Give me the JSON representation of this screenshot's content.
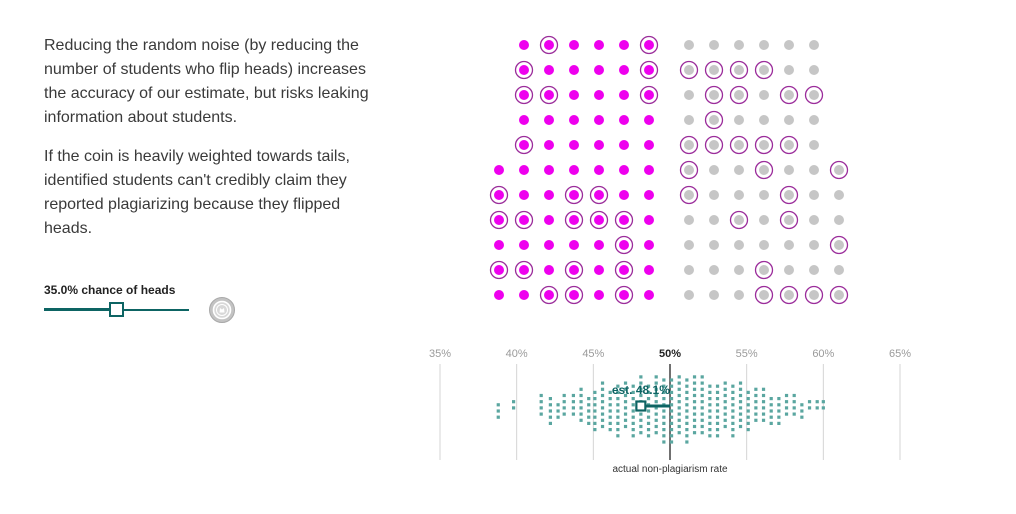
{
  "text": {
    "paragraph_1": "Reducing the random noise (by reducing the number of students who flip heads) increases the accuracy of our estimate, but risks leaking information about students.",
    "paragraph_2": "If the coin is heavily weighted towards tails, identified students can't credibly claim they reported plagiarizing because they flipped heads."
  },
  "slider": {
    "label": "35.0% chance of heads",
    "value": 0.35
  },
  "coin_button": {
    "icon": "coin-icon"
  },
  "colors": {
    "plagiarized": "#ee00ee",
    "not_plagiarized": "#c6c6c6",
    "heads_ring": "#9b2d9b",
    "estimate": "#0d6463",
    "sample": "#5aa6a0"
  },
  "student_grid": {
    "rows": [
      {
        "magenta": [
          false,
          true,
          false,
          false,
          false,
          true
        ],
        "gray": [
          false,
          false,
          false,
          false,
          false,
          false
        ]
      },
      {
        "magenta": [
          true,
          false,
          false,
          false,
          false,
          true
        ],
        "gray": [
          true,
          true,
          true,
          true,
          false,
          false
        ]
      },
      {
        "magenta": [
          true,
          true,
          false,
          false,
          false,
          true
        ],
        "gray": [
          false,
          true,
          true,
          false,
          true,
          true
        ]
      },
      {
        "magenta": [
          false,
          false,
          false,
          false,
          false,
          false
        ],
        "gray": [
          false,
          true,
          false,
          false,
          false,
          false
        ]
      },
      {
        "magenta": [
          true,
          false,
          false,
          false,
          false,
          false
        ],
        "gray": [
          true,
          true,
          true,
          true,
          true,
          false
        ]
      },
      {
        "magenta": [
          false,
          false,
          false,
          false,
          false,
          false,
          false
        ],
        "gray": [
          true,
          false,
          false,
          true,
          false,
          false,
          true
        ]
      },
      {
        "magenta": [
          true,
          false,
          false,
          true,
          true,
          false,
          false
        ],
        "gray": [
          true,
          false,
          false,
          false,
          true,
          false,
          false
        ]
      },
      {
        "magenta": [
          true,
          true,
          false,
          true,
          true,
          true,
          false
        ],
        "gray": [
          false,
          false,
          true,
          false,
          true,
          false,
          false
        ]
      },
      {
        "magenta": [
          false,
          false,
          false,
          false,
          false,
          true,
          false
        ],
        "gray": [
          false,
          false,
          false,
          false,
          false,
          false,
          true
        ]
      },
      {
        "magenta": [
          true,
          true,
          false,
          true,
          false,
          true,
          false
        ],
        "gray": [
          false,
          false,
          false,
          true,
          false,
          false,
          false
        ]
      },
      {
        "magenta": [
          false,
          false,
          true,
          true,
          false,
          true,
          false
        ],
        "gray": [
          false,
          false,
          false,
          true,
          true,
          true,
          true
        ]
      }
    ]
  },
  "chart_data": {
    "type": "scatter",
    "x_ticks": [
      "35%",
      "40%",
      "45%",
      "50%",
      "55%",
      "60%",
      "65%"
    ],
    "x_tick_values": [
      35,
      40,
      45,
      50,
      55,
      60,
      65
    ],
    "xlim": [
      35,
      65
    ],
    "highlight_tick": "50%",
    "actual_rate": 50,
    "actual_label": "actual non-plagiarism rate",
    "estimate_value": 48.1,
    "estimate_label": "est. 48.1%",
    "sample_estimates": [
      [
        38.8,
        3
      ],
      [
        39.8,
        2
      ],
      [
        41.6,
        4
      ],
      [
        42.2,
        5
      ],
      [
        42.7,
        3
      ],
      [
        43.1,
        4
      ],
      [
        43.7,
        4
      ],
      [
        44.2,
        6
      ],
      [
        44.7,
        5
      ],
      [
        45.1,
        7
      ],
      [
        45.6,
        8
      ],
      [
        46.1,
        7
      ],
      [
        46.6,
        9
      ],
      [
        47.1,
        8
      ],
      [
        47.6,
        9
      ],
      [
        48.1,
        10
      ],
      [
        48.6,
        9
      ],
      [
        49.1,
        10
      ],
      [
        49.6,
        11
      ],
      [
        50.1,
        11
      ],
      [
        50.6,
        10
      ],
      [
        51.1,
        11
      ],
      [
        51.6,
        10
      ],
      [
        52.1,
        10
      ],
      [
        52.6,
        9
      ],
      [
        53.1,
        9
      ],
      [
        53.6,
        8
      ],
      [
        54.1,
        9
      ],
      [
        54.6,
        8
      ],
      [
        55.1,
        7
      ],
      [
        55.6,
        6
      ],
      [
        56.1,
        6
      ],
      [
        56.6,
        5
      ],
      [
        57.1,
        5
      ],
      [
        57.6,
        4
      ],
      [
        58.1,
        4
      ],
      [
        58.6,
        3
      ],
      [
        59.1,
        2
      ],
      [
        59.6,
        2
      ],
      [
        60.0,
        2
      ]
    ]
  }
}
